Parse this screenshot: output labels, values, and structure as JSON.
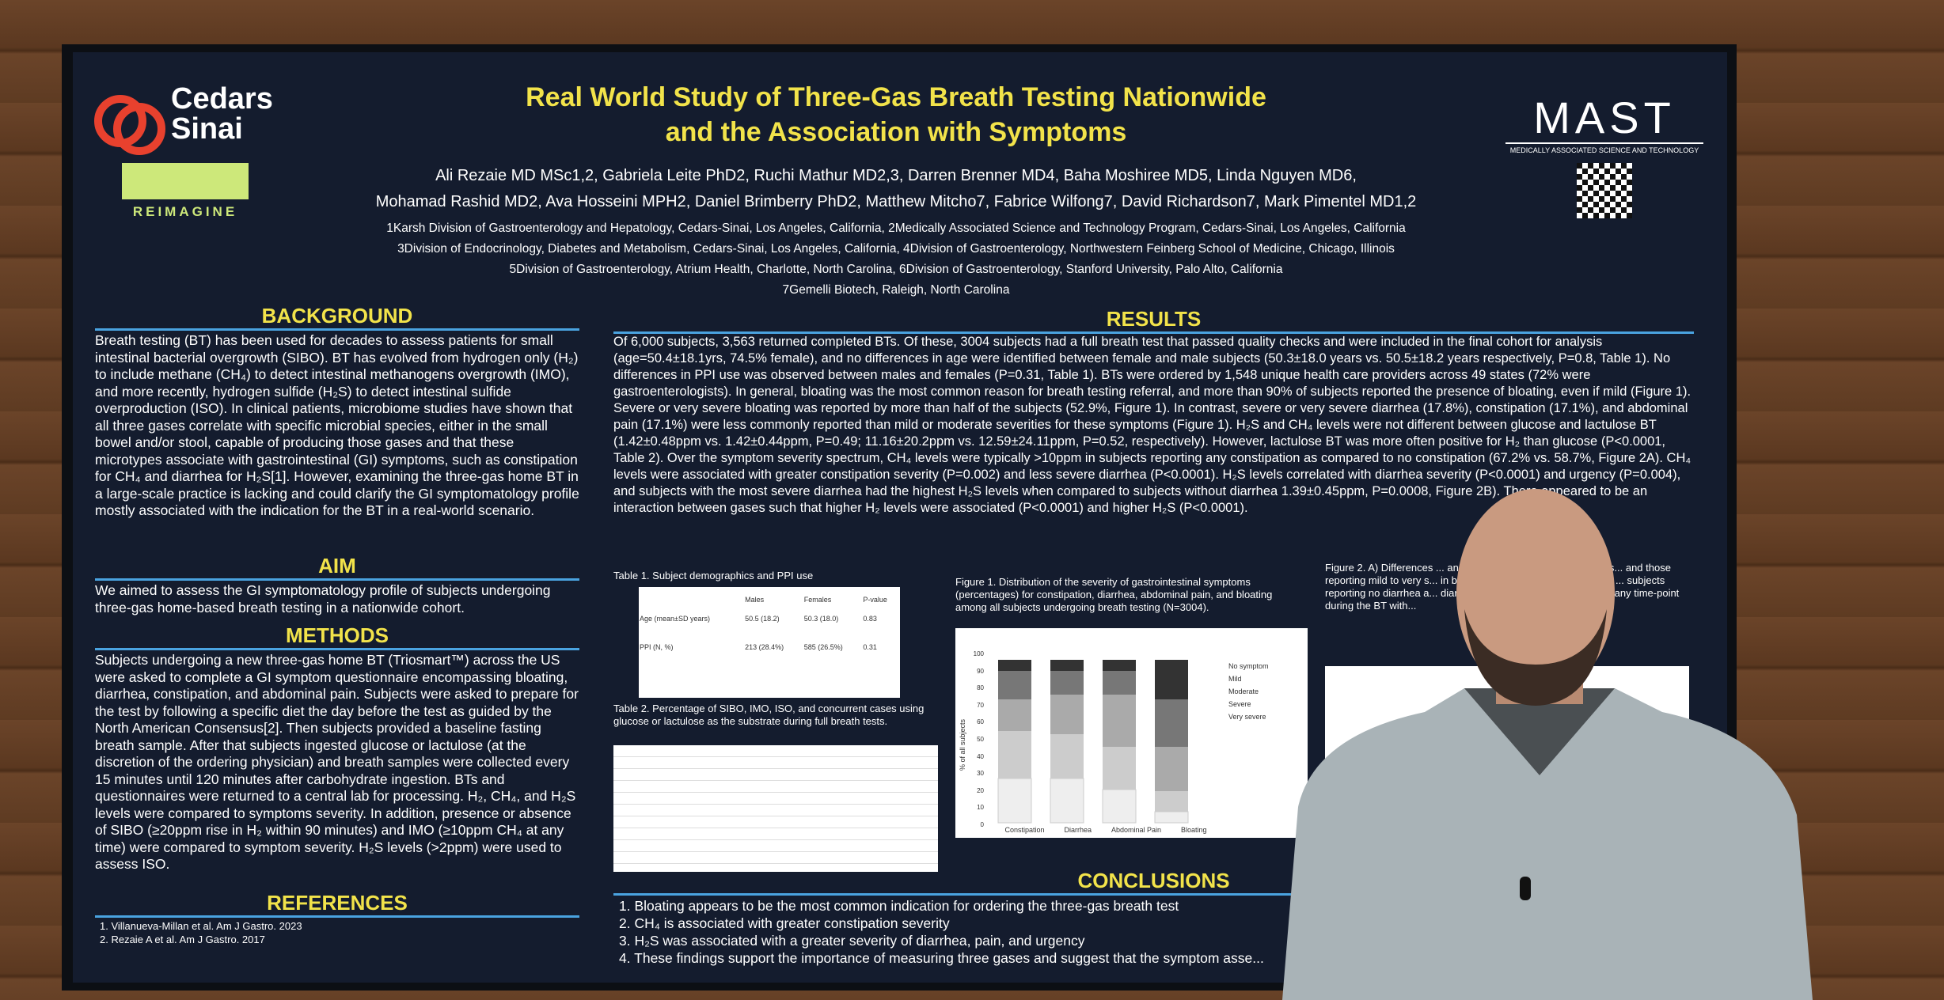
{
  "header": {
    "logo_left": "Cedars Sinai",
    "reimagine": "REIMAGINE",
    "title": [
      "Real World Study of Three-Gas Breath Testing Nationwide",
      "and the Association with Symptoms"
    ],
    "authors": [
      "Ali Rezaie MD MSc1,2, Gabriela Leite PhD2, Ruchi Mathur MD2,3, Darren Brenner MD4, Baha Moshiree MD5, Linda Nguyen MD6,",
      "Mohamad Rashid MD2, Ava Hosseini MPH2, Daniel Brimberry PhD2, Matthew Mitcho7, Fabrice Wilfong7, David Richardson7, Mark Pimentel MD1,2"
    ],
    "affiliations": [
      "1Karsh Division of Gastroenterology and Hepatology, Cedars-Sinai, Los Angeles, California, 2Medically Associated Science and Technology Program, Cedars-Sinai, Los Angeles, California",
      "3Division of Endocrinology, Diabetes and Metabolism, Cedars-Sinai, Los Angeles, California, 4Division of Gastroenterology, Northwestern Feinberg School of Medicine, Chicago, Illinois",
      "5Division of Gastroenterology, Atrium Health, Charlotte, North Carolina, 6Division of Gastroenterology, Stanford University, Palo Alto, California",
      "7Gemelli Biotech, Raleigh, North Carolina"
    ],
    "logo_right": "MAST",
    "logo_right_sub": "MEDICALLY ASSOCIATED SCIENCE AND TECHNOLOGY"
  },
  "background": {
    "heading": "BACKGROUND",
    "text": "Breath testing (BT) has been used for decades to assess patients for small intestinal bacterial overgrowth (SIBO). BT has evolved from hydrogen only (H₂) to include methane (CH₄) to detect intestinal methanogens overgrowth (IMO), and more recently, hydrogen sulfide (H₂S) to detect intestinal sulfide overproduction (ISO). In clinical patients, microbiome studies have shown that all three gases correlate with specific microbial species, either in the small bowel and/or stool, capable of producing those gases and that these microtypes associate with gastrointestinal (GI) symptoms, such as constipation for CH₄ and diarrhea for H₂S[1]. However, examining the three-gas home BT in a large-scale practice is lacking and could clarify the GI symptomatology profile mostly associated with the indication for the BT in a real-world scenario."
  },
  "aim": {
    "heading": "AIM",
    "text": "We aimed to assess the GI symptomatology profile of subjects undergoing three-gas home-based breath testing in a nationwide cohort."
  },
  "methods": {
    "heading": "METHODS",
    "text": "Subjects undergoing a new three-gas home BT (Triosmart™) across the US were asked to complete a GI symptom questionnaire encompassing bloating, diarrhea, constipation, and abdominal pain. Subjects were asked to prepare for the test by following a specific diet the day before the test as guided by the North American Consensus[2]. Then subjects provided a baseline fasting breath sample. After that subjects ingested glucose or lactulose (at the discretion of the ordering physician) and breath samples were collected every 15 minutes until 120 minutes after carbohydrate ingestion. BTs and questionnaires were returned to a central lab for processing. H₂, CH₄, and H₂S levels were compared to symptoms severity. In addition, presence or absence of SIBO (≥20ppm rise in H₂ within 90 minutes) and IMO (≥10ppm CH₄ at any time) were compared to symptom severity. H₂S levels (>2ppm) were used to assess ISO."
  },
  "references": {
    "heading": "REFERENCES",
    "items": [
      "1.  Villanueva-Millan et al. Am J Gastro. 2023",
      "2.  Rezaie A et al. Am J Gastro. 2017"
    ]
  },
  "results": {
    "heading": "RESULTS",
    "text": "Of 6,000 subjects, 3,563 returned completed BTs. Of these, 3004 subjects had a full breath test that passed quality checks and were included in the final cohort for analysis (age=50.4±18.1yrs, 74.5% female), and no differences in age were identified between female and male subjects (50.3±18.0 years vs. 50.5±18.2 years respectively, P=0.8, Table 1). No differences in PPI use was observed between males and females (P=0.31, Table 1). BTs were ordered by 1,548 unique health care providers across 49 states (72% were gastroenterologists). In general, bloating was the most common reason for breath testing referral, and more than 90% of subjects reported the presence of bloating, even if mild (Figure 1). Severe or very severe bloating was reported by more than half of the subjects (52.9%, Figure 1). In contrast, severe or very severe diarrhea (17.8%), constipation (17.1%), and abdominal pain (17.1%) were less commonly reported than mild or moderate severities for these symptoms (Figure 1). H₂S and CH₄ levels were not different between glucose and lactulose BT (1.42±0.48ppm vs. 1.42±0.44ppm, P=0.49; 11.16±20.2ppm vs. 12.59±24.11ppm, P=0.52, respectively). However, lactulose BT was more often positive for H₂ than glucose (P<0.0001, Table 2). Over the symptom severity spectrum, CH₄ levels were typically >10ppm in subjects reporting any constipation as compared to no constipation (67.2% vs. 58.7%, Figure 2A). CH₄ levels were associated with greater constipation severity (P=0.002) and less severe diarrhea (P<0.0001). H₂S levels correlated with diarrhea severity (P<0.0001) and urgency (P=0.004), and subjects with the most severe diarrhea had the highest H₂S levels when compared to subjects without diarrhea 1.39±0.45ppm, P=0.0008, Figure 2B). There appeared to be an interaction between gases such that higher H₂ levels were associated (P<0.0001) and higher H₂S (P<0.0001).",
    "table1_caption": "Table 1. Subject demographics and PPI use",
    "table1_head": [
      "Males",
      "Females",
      "P-value"
    ],
    "table1_rows": [
      [
        "Age (mean±SD years)",
        "50.5 (18.2)",
        "50.3 (18.0)",
        "0.83"
      ],
      [
        "PPI (N, %)",
        "213 (28.4%)",
        "585 (26.5%)",
        "0.31"
      ]
    ],
    "table2_caption": "Table 2. Percentage of SIBO, IMO, ISO, and concurrent cases using glucose or lactulose as the substrate during full breath tests.",
    "fig1_caption": "Figure 1. Distribution of the severity of gastrointestinal symptoms (percentages) for constipation, diarrhea, abdominal pain, and bloating among all subjects undergoing breath testing (N=3004).",
    "fig1_categories": [
      "Constipation",
      "Diarrhea",
      "Abdominal Pain",
      "Bloating"
    ],
    "fig1_legend": [
      "No symptom",
      "Mild",
      "Moderate",
      "Severe",
      "Very severe"
    ],
    "fig1_ylabel": "% of all subjects",
    "fig1_yticks": [
      "100",
      "90",
      "80",
      "70",
      "60",
      "50",
      "40",
      "30",
      "20",
      "10",
      "0"
    ],
    "fig2_caption": "Figure 2. A) Differences ... and lactulose breath testing across s... and those reporting mild to very s... in breath H₂S levels after glucose and ... subjects reporting no diarrhea a... diarrhea. Bars represent the mea... at any time-point during the BT with..."
  },
  "conclusions": {
    "heading": "CONCLUSIONS",
    "items": [
      "1.   Bloating appears to be the most common indication for ordering the three-gas breath test",
      "2.   CH₄ is associated with greater constipation severity",
      "3.   H₂S was associated with a greater severity of diarrhea, pain, and urgency",
      "4.   These findings support the importance of measuring three gases and suggest that the symptom asse..."
    ]
  }
}
